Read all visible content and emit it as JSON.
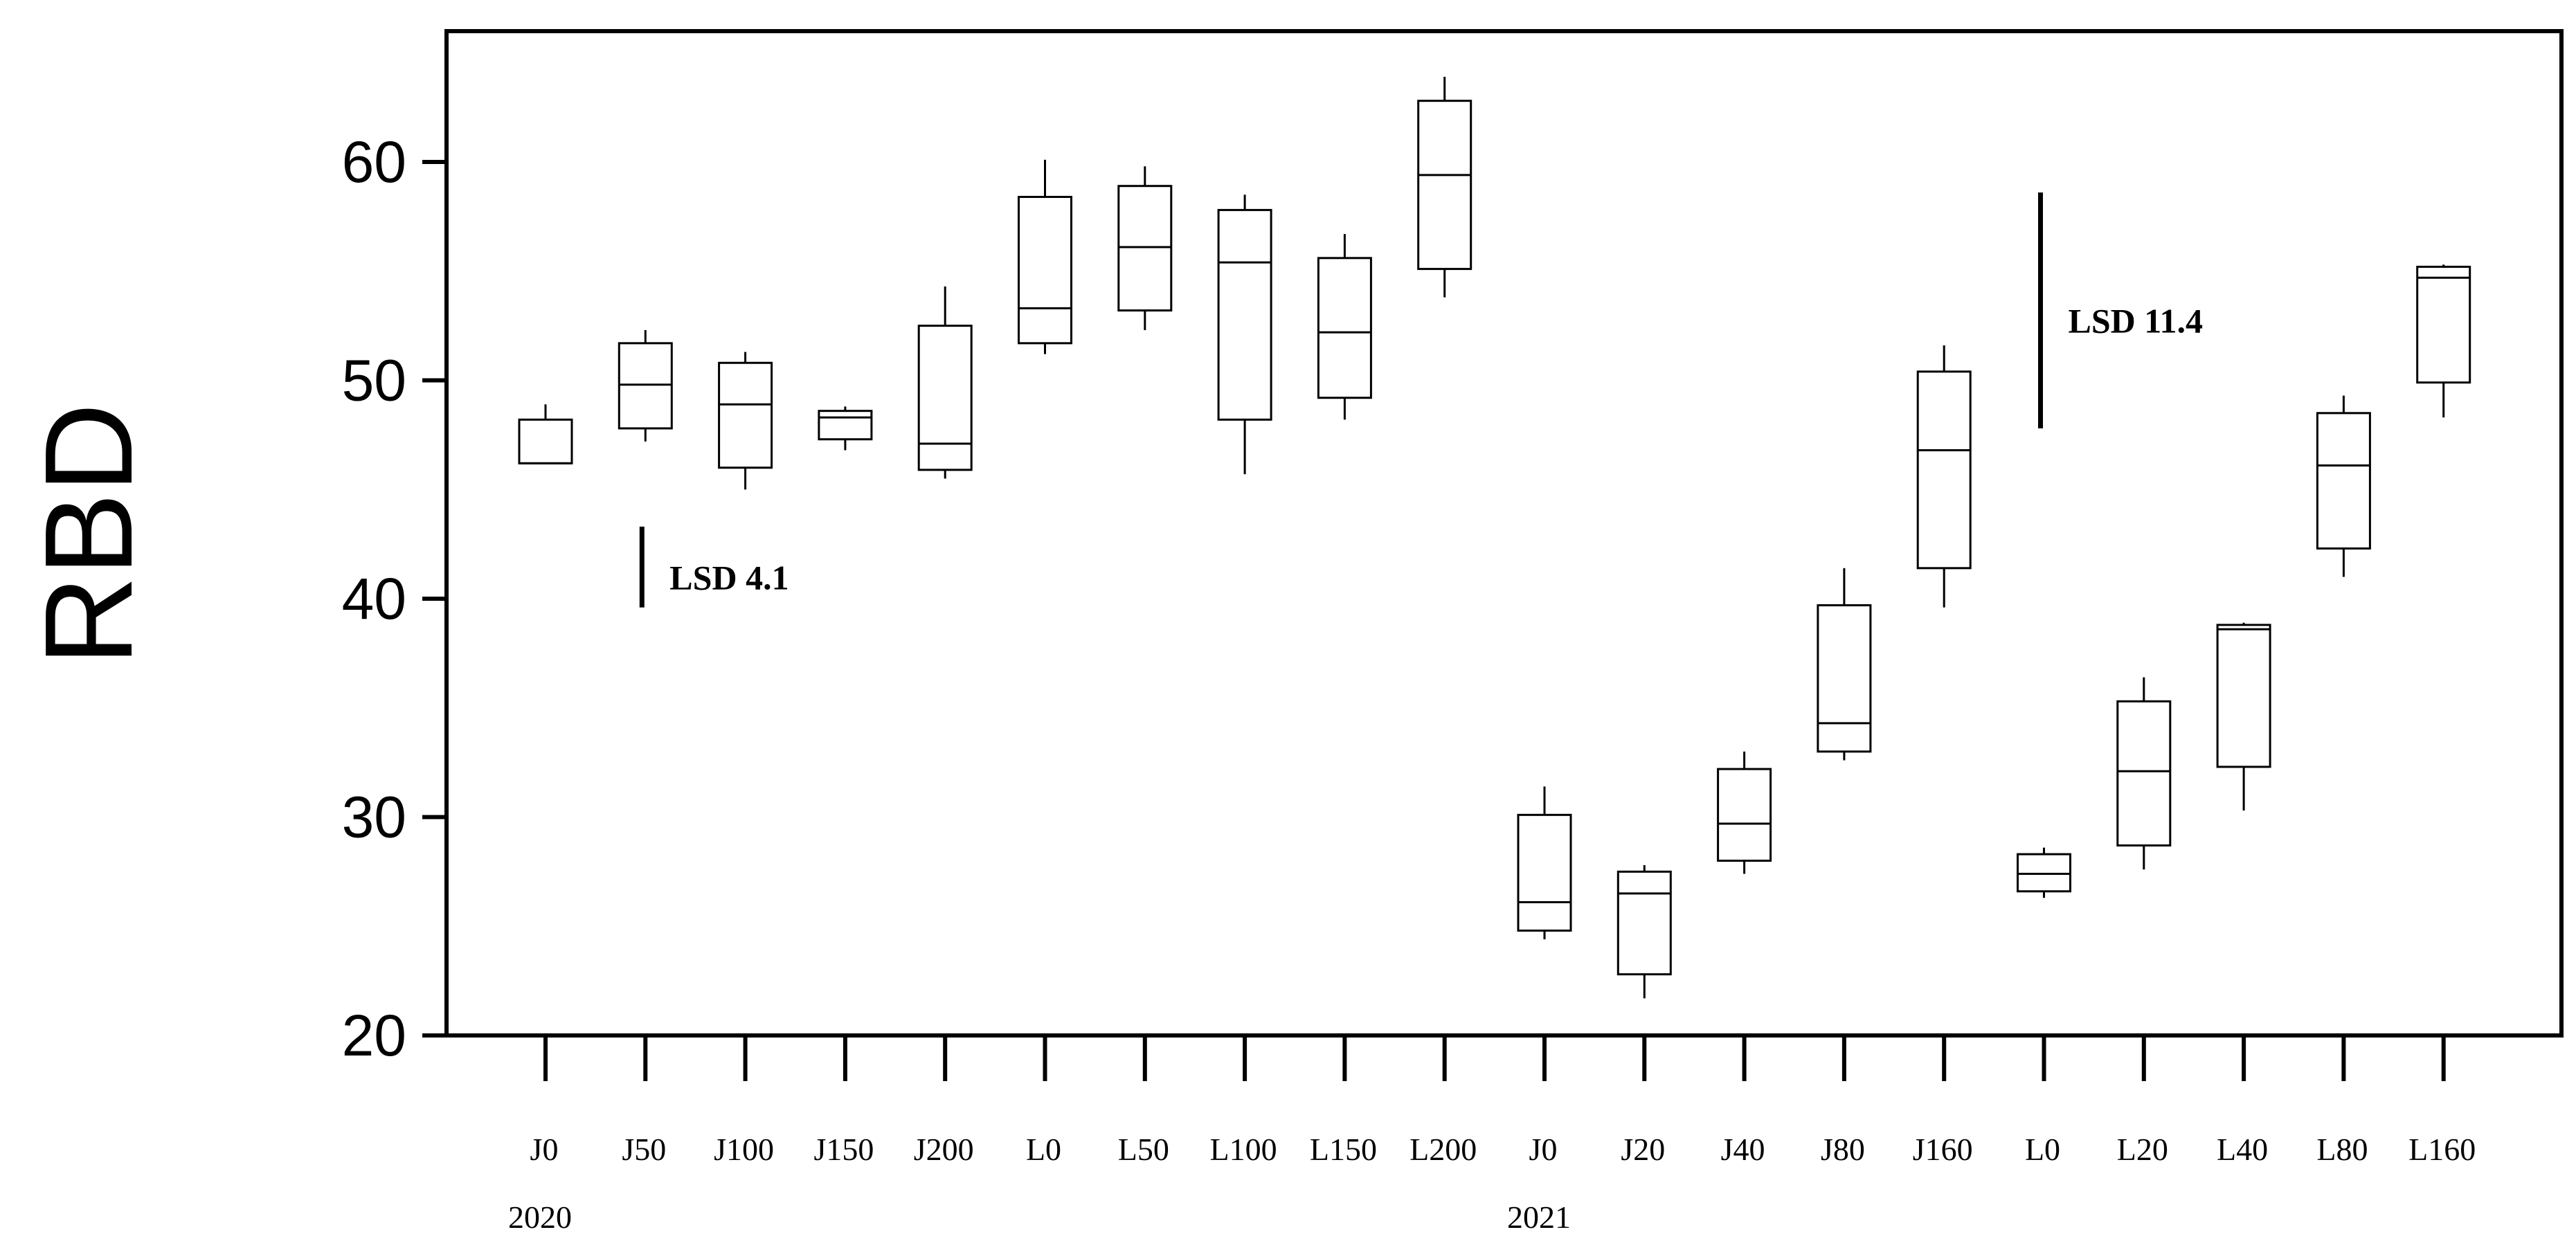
{
  "chart_data": {
    "type": "box",
    "ylabel": "RBD",
    "xlabel": "",
    "ylim": [
      20,
      65
    ],
    "yticks": [
      20,
      30,
      40,
      50,
      60
    ],
    "grid": false,
    "groups": [
      {
        "label": "2020",
        "start_index": 0
      },
      {
        "label": "2021",
        "start_index": 10
      }
    ],
    "categories": [
      "J0",
      "J50",
      "J100",
      "J150",
      "J200",
      "L0",
      "L50",
      "L100",
      "L150",
      "L200",
      "J0",
      "J20",
      "J40",
      "J80",
      "J160",
      "L0",
      "L20",
      "L40",
      "L80",
      "L160"
    ],
    "boxes": [
      {
        "category": "J0",
        "min": 46.2,
        "q1": 46.2,
        "median": 46.2,
        "q3": 48.2,
        "max": 48.9
      },
      {
        "category": "J50",
        "min": 47.2,
        "q1": 47.8,
        "median": 49.8,
        "q3": 51.7,
        "max": 52.3
      },
      {
        "category": "J100",
        "min": 45.0,
        "q1": 46.0,
        "median": 48.9,
        "q3": 50.8,
        "max": 51.3
      },
      {
        "category": "J150",
        "min": 46.8,
        "q1": 47.3,
        "median": 48.3,
        "q3": 48.6,
        "max": 48.8
      },
      {
        "category": "J200",
        "min": 45.5,
        "q1": 45.9,
        "median": 47.1,
        "q3": 52.5,
        "max": 54.3
      },
      {
        "category": "L0",
        "min": 51.2,
        "q1": 51.7,
        "median": 53.3,
        "q3": 58.4,
        "max": 60.1
      },
      {
        "category": "L50",
        "min": 52.3,
        "q1": 53.2,
        "median": 56.1,
        "q3": 58.9,
        "max": 59.8
      },
      {
        "category": "L100",
        "min": 45.7,
        "q1": 48.2,
        "median": 55.4,
        "q3": 57.8,
        "max": 58.5
      },
      {
        "category": "L150",
        "min": 48.2,
        "q1": 49.2,
        "median": 52.2,
        "q3": 55.6,
        "max": 56.7
      },
      {
        "category": "L200",
        "min": 53.8,
        "q1": 55.1,
        "median": 59.4,
        "q3": 62.8,
        "max": 63.9
      },
      {
        "category": "J0",
        "min": 24.4,
        "q1": 24.8,
        "median": 26.1,
        "q3": 30.1,
        "max": 31.4
      },
      {
        "category": "J20",
        "min": 21.7,
        "q1": 22.8,
        "median": 26.5,
        "q3": 27.5,
        "max": 27.8
      },
      {
        "category": "J40",
        "min": 27.4,
        "q1": 28.0,
        "median": 29.7,
        "q3": 32.2,
        "max": 33.0
      },
      {
        "category": "J80",
        "min": 32.6,
        "q1": 33.0,
        "median": 34.3,
        "q3": 39.7,
        "max": 41.4
      },
      {
        "category": "J160",
        "min": 39.6,
        "q1": 41.4,
        "median": 46.8,
        "q3": 50.4,
        "max": 51.6
      },
      {
        "category": "L0",
        "min": 26.3,
        "q1": 26.6,
        "median": 27.4,
        "q3": 28.3,
        "max": 28.6
      },
      {
        "category": "L20",
        "min": 27.6,
        "q1": 28.7,
        "median": 32.1,
        "q3": 35.3,
        "max": 36.4
      },
      {
        "category": "L40",
        "min": 30.3,
        "q1": 32.3,
        "median": 38.6,
        "q3": 38.8,
        "max": 38.9
      },
      {
        "category": "L80",
        "min": 41.0,
        "q1": 42.3,
        "median": 46.1,
        "q3": 48.5,
        "max": 49.3
      },
      {
        "category": "L160",
        "min": 48.3,
        "q1": 49.9,
        "median": 54.7,
        "q3": 55.2,
        "max": 55.3
      }
    ],
    "annotations": [
      {
        "text": "LSD 4.1",
        "y_low": 39.6,
        "y_high": 43.3,
        "near_category_index": 1
      },
      {
        "text": "LSD 11.4",
        "y_low": 47.8,
        "y_high": 58.6,
        "near_category_index": 15
      }
    ]
  }
}
